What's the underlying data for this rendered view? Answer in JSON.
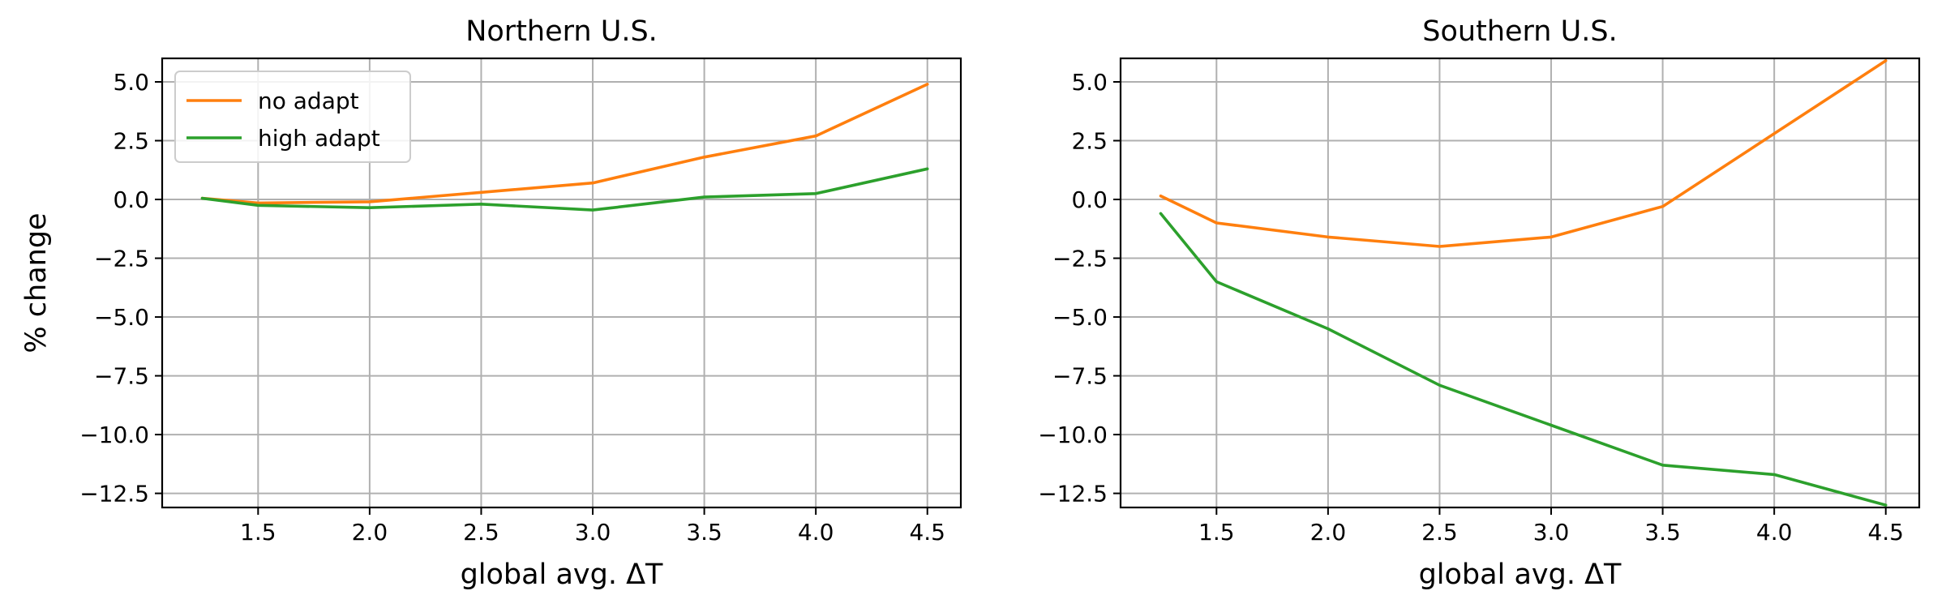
{
  "chart_data": [
    {
      "type": "line",
      "title": "Northern U.S.",
      "xlabel": "global avg. ΔT",
      "ylabel": "% change",
      "xlim": [
        1.07,
        4.65
      ],
      "ylim": [
        -13.1,
        6.0
      ],
      "xticks": [
        1.5,
        2.0,
        2.5,
        3.0,
        3.5,
        4.0,
        4.5
      ],
      "xtick_labels": [
        "1.5",
        "2.0",
        "2.5",
        "3.0",
        "3.5",
        "4.0",
        "4.5"
      ],
      "yticks": [
        5.0,
        2.5,
        0.0,
        -2.5,
        -5.0,
        -7.5,
        -10.0,
        -12.5
      ],
      "ytick_labels": [
        "5.0",
        "2.5",
        "0.0",
        "−2.5",
        "−5.0",
        "−7.5",
        "−10.0",
        "−12.5"
      ],
      "grid": true,
      "legend": "top-left",
      "x": [
        1.25,
        1.5,
        2.0,
        2.5,
        3.0,
        3.5,
        4.0,
        4.5
      ],
      "series": [
        {
          "name": "no adapt",
          "color": "#ff7f0e",
          "values": [
            0.05,
            -0.15,
            -0.1,
            0.3,
            0.7,
            1.8,
            2.7,
            4.9
          ]
        },
        {
          "name": "high adapt",
          "color": "#2ca02c",
          "values": [
            0.05,
            -0.25,
            -0.35,
            -0.2,
            -0.45,
            0.1,
            0.25,
            1.3
          ]
        }
      ]
    },
    {
      "type": "line",
      "title": "Southern U.S.",
      "xlabel": "global avg. ΔT",
      "ylabel": "",
      "xlim": [
        1.07,
        4.65
      ],
      "ylim": [
        -13.1,
        6.0
      ],
      "xticks": [
        1.5,
        2.0,
        2.5,
        3.0,
        3.5,
        4.0,
        4.5
      ],
      "xtick_labels": [
        "1.5",
        "2.0",
        "2.5",
        "3.0",
        "3.5",
        "4.0",
        "4.5"
      ],
      "yticks": [
        5.0,
        2.5,
        0.0,
        -2.5,
        -5.0,
        -7.5,
        -10.0,
        -12.5
      ],
      "ytick_labels": [
        "5.0",
        "2.5",
        "0.0",
        "−2.5",
        "−5.0",
        "−7.5",
        "−10.0",
        "−12.5"
      ],
      "grid": true,
      "legend": "none",
      "x": [
        1.25,
        1.5,
        2.0,
        2.5,
        3.0,
        3.5,
        4.0,
        4.5
      ],
      "series": [
        {
          "name": "no adapt",
          "color": "#ff7f0e",
          "values": [
            0.15,
            -1.0,
            -1.6,
            -2.0,
            -1.6,
            -0.3,
            2.8,
            5.9
          ]
        },
        {
          "name": "high adapt",
          "color": "#2ca02c",
          "values": [
            -0.6,
            -3.5,
            -5.5,
            -7.9,
            -9.6,
            -11.3,
            -11.7,
            -13.0
          ]
        }
      ]
    }
  ]
}
